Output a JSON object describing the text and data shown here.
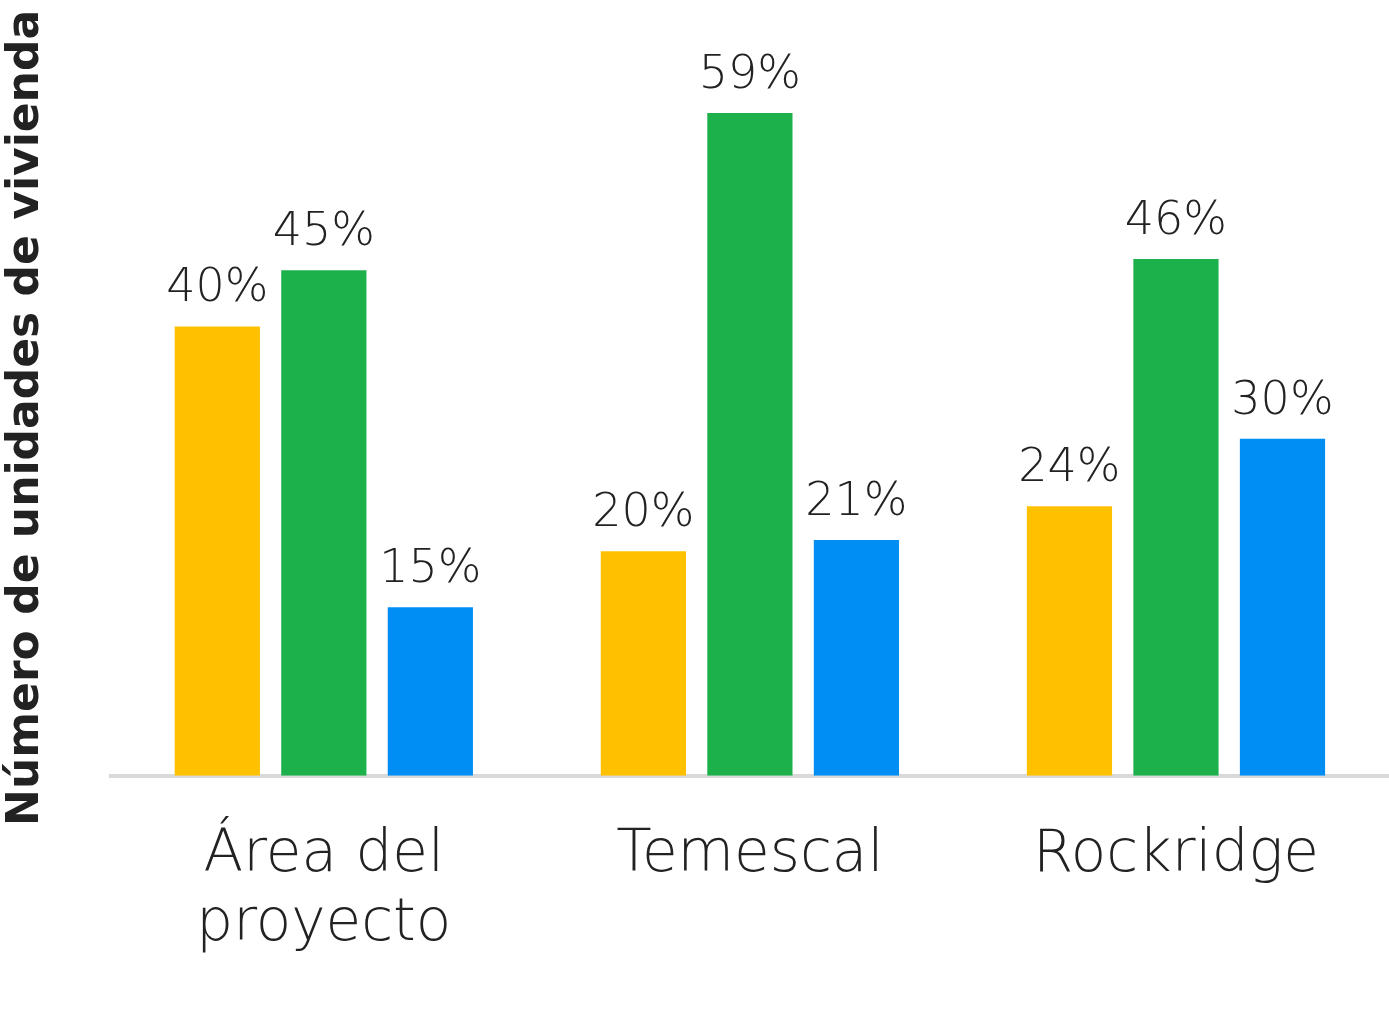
{
  "chart_data": {
    "type": "bar",
    "ylabel": "Número de unidades de vivienda",
    "categories": [
      "Área del proyecto",
      "Temescal",
      "Rockridge"
    ],
    "series": [
      {
        "color": "#ffc000",
        "values": [
          40,
          20,
          24
        ],
        "value_labels": [
          "40%",
          "20%",
          "24%"
        ]
      },
      {
        "color": "#1db14b",
        "values": [
          45,
          59,
          46
        ],
        "value_labels": [
          "45%",
          "59%",
          "46%"
        ]
      },
      {
        "color": "#008ef5",
        "values": [
          15,
          21,
          30
        ],
        "value_labels": [
          "15%",
          "21%",
          "30%"
        ]
      }
    ],
    "grid": false,
    "legend": false
  }
}
